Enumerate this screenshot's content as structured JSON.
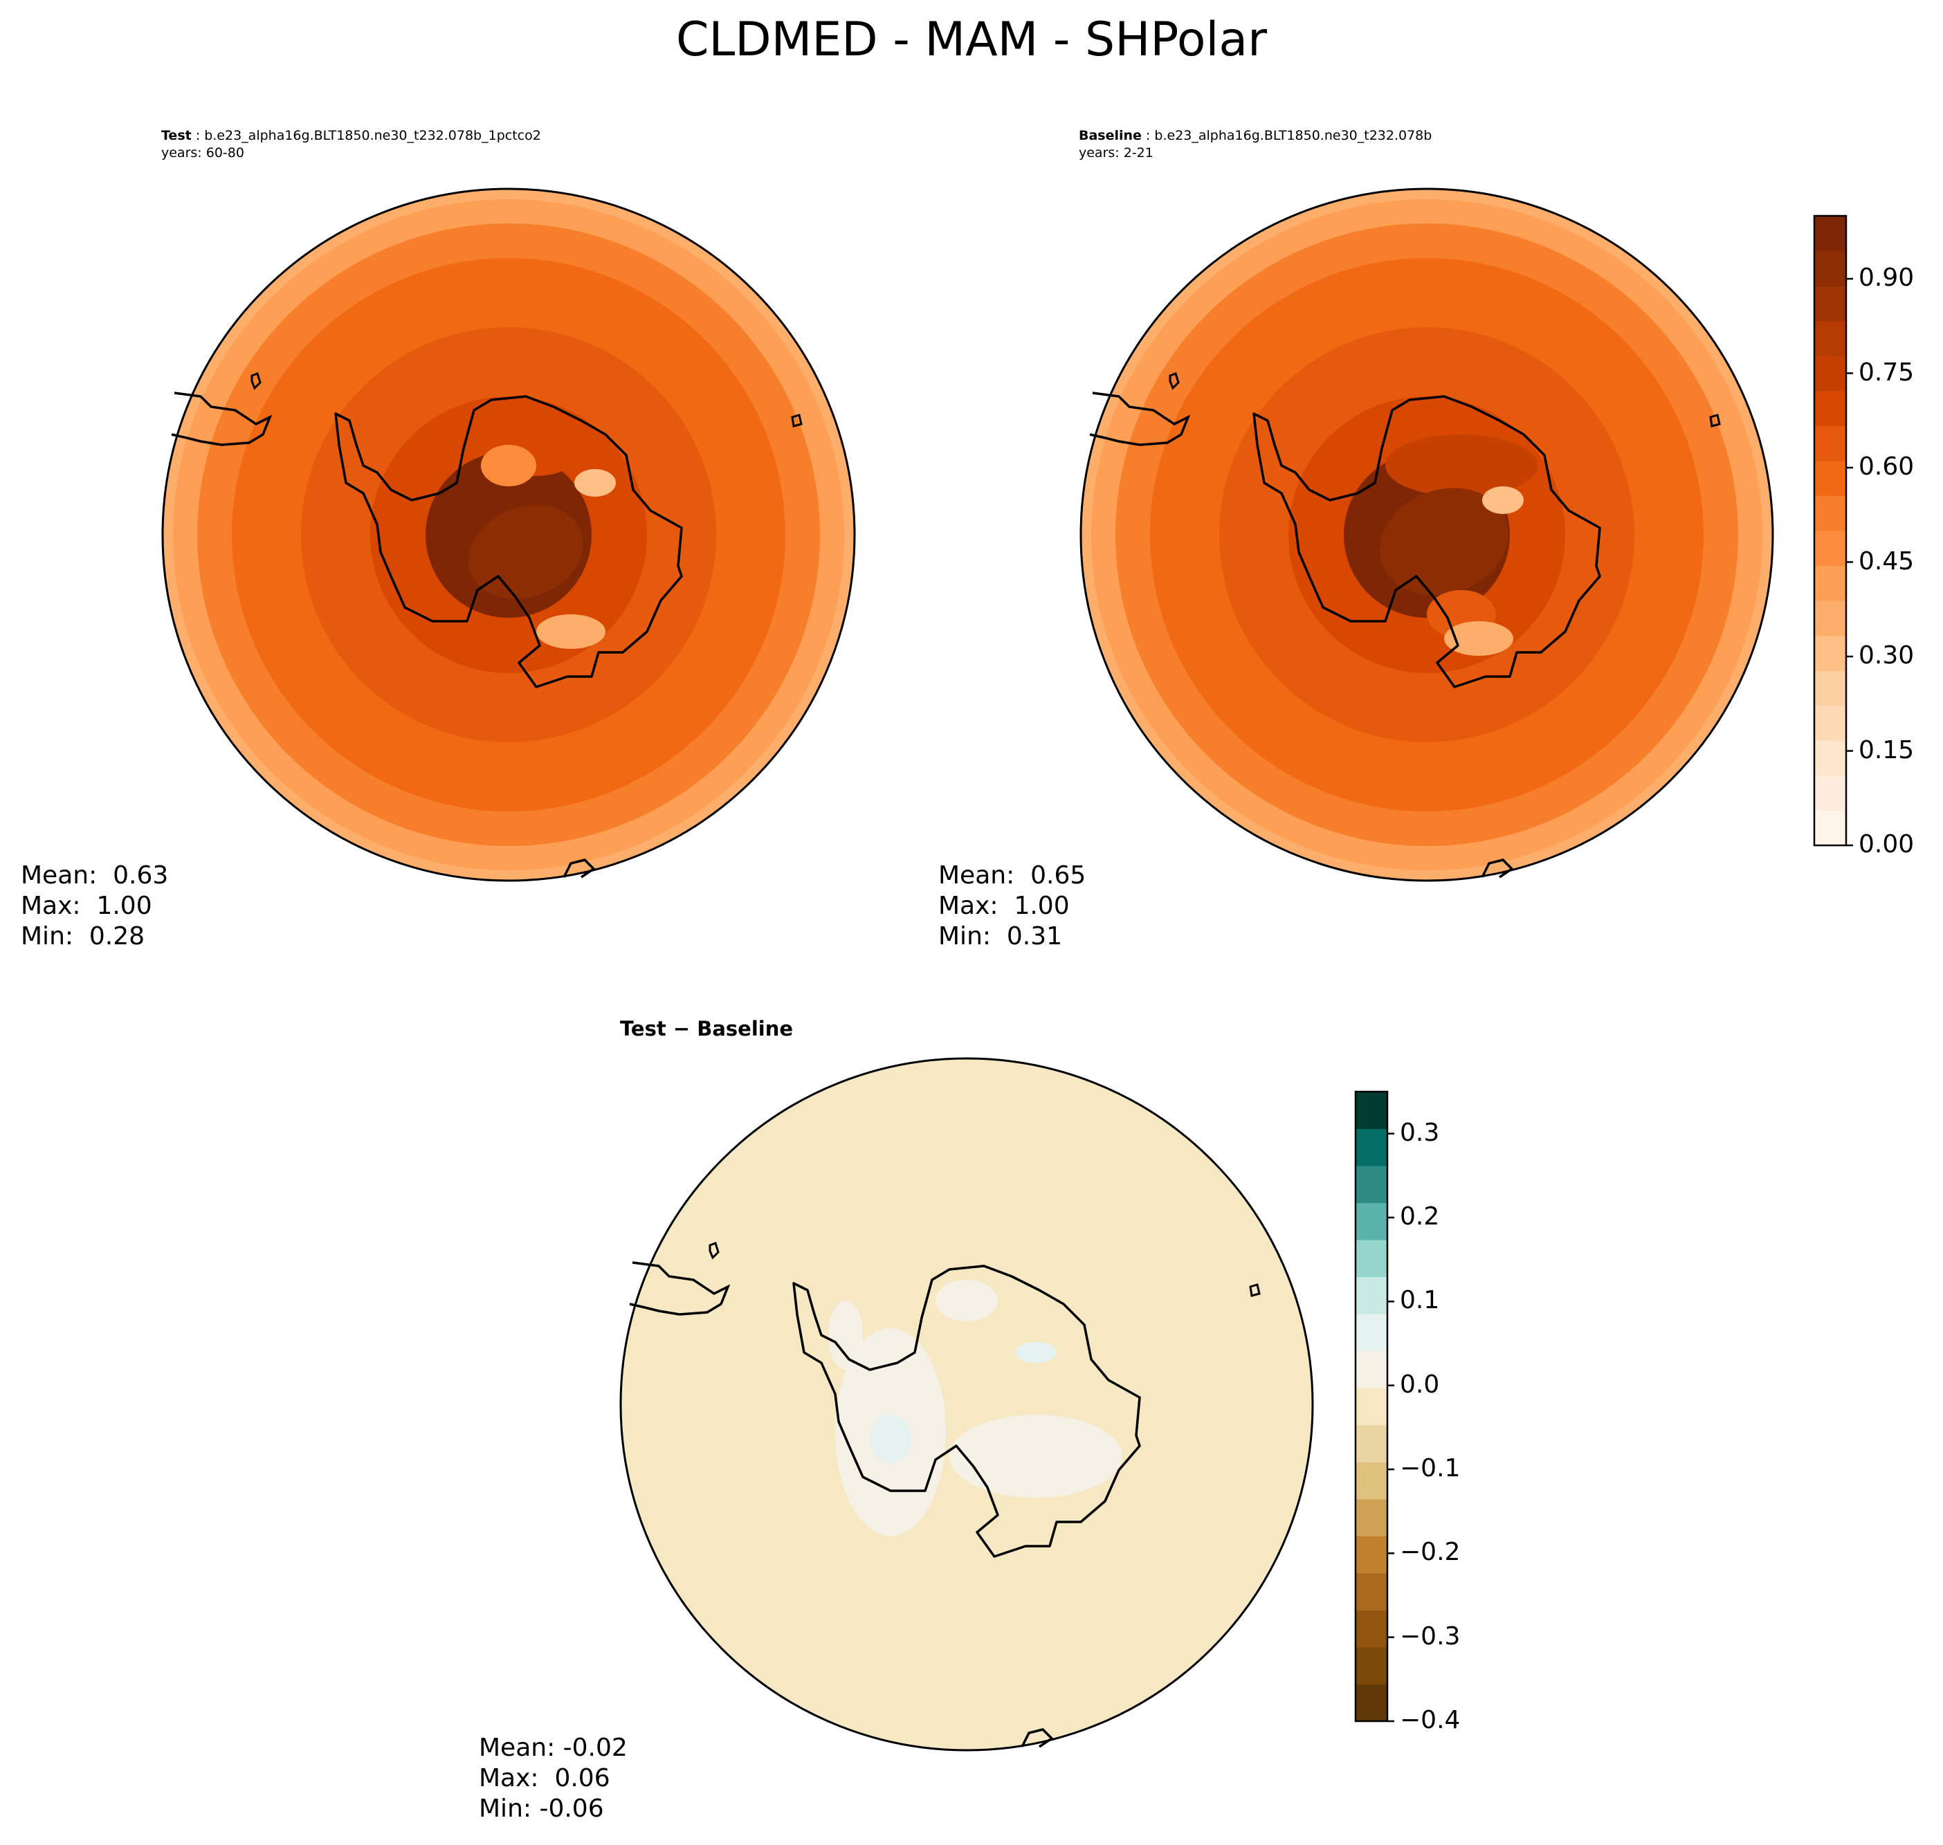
{
  "figure": {
    "title": "CLDMED - MAM - SHPolar"
  },
  "chart_data": [
    {
      "type": "heatmap",
      "panel": "test",
      "label": "Test",
      "case": "b.e23_alpha16g.BLT1850.ne30_t232.078b_1pctco2",
      "years": "years: 60-80",
      "projection": "south polar stereographic",
      "colormap": "Oranges",
      "levels": [
        0,
        0.05,
        0.1,
        0.15,
        0.2,
        0.25,
        0.3,
        0.35,
        0.4,
        0.45,
        0.5,
        0.55,
        0.6,
        0.65,
        0.7,
        0.75,
        0.8,
        0.85,
        0.9,
        0.95,
        1.0
      ],
      "stats": {
        "mean": "Mean:  0.63",
        "max": "Max:  1.00",
        "min": "Min:  0.28"
      },
      "rings": [
        {
          "r": 1.0,
          "value": 0.35
        },
        {
          "r": 0.97,
          "value": 0.42
        },
        {
          "r": 0.9,
          "value": 0.5
        },
        {
          "r": 0.8,
          "value": 0.57
        },
        {
          "r": 0.6,
          "value": 0.62
        },
        {
          "r": 0.4,
          "value": 0.68
        },
        {
          "r": 0.24,
          "value": 0.97
        }
      ]
    },
    {
      "type": "heatmap",
      "panel": "baseline",
      "label": "Baseline",
      "case": "b.e23_alpha16g.BLT1850.ne30_t232.078b",
      "years": "years: 2-21",
      "projection": "south polar stereographic",
      "colormap": "Oranges",
      "levels": [
        0,
        0.05,
        0.1,
        0.15,
        0.2,
        0.25,
        0.3,
        0.35,
        0.4,
        0.45,
        0.5,
        0.55,
        0.6,
        0.65,
        0.7,
        0.75,
        0.8,
        0.85,
        0.9,
        0.95,
        1.0
      ],
      "stats": {
        "mean": "Mean:  0.65",
        "max": "Max:  1.00",
        "min": "Min:  0.31"
      },
      "rings": [
        {
          "r": 1.0,
          "value": 0.36
        },
        {
          "r": 0.97,
          "value": 0.44
        },
        {
          "r": 0.9,
          "value": 0.52
        },
        {
          "r": 0.8,
          "value": 0.58
        },
        {
          "r": 0.6,
          "value": 0.64
        },
        {
          "r": 0.4,
          "value": 0.7
        },
        {
          "r": 0.24,
          "value": 0.97
        }
      ]
    },
    {
      "type": "heatmap",
      "panel": "difference",
      "label": "Test − Baseline",
      "projection": "south polar stereographic",
      "colormap": "BrBG",
      "levels": [
        -0.4,
        -0.35,
        -0.3,
        -0.25,
        -0.2,
        -0.15,
        -0.1,
        -0.05,
        0.0,
        0.05,
        0.1,
        0.15,
        0.2,
        0.25,
        0.3,
        0.35
      ],
      "stats": {
        "mean": "Mean: -0.02",
        "max": "Max:  0.06",
        "min": "Min: -0.06"
      },
      "rings": [
        {
          "r": 1.0,
          "value": -0.02
        }
      ]
    }
  ],
  "colorbars": {
    "abs": {
      "ticks": [
        "0.00",
        "0.15",
        "0.30",
        "0.45",
        "0.60",
        "0.75",
        "0.90"
      ],
      "tick_values": [
        0,
        0.15,
        0.3,
        0.45,
        0.6,
        0.75,
        0.9
      ],
      "range": [
        0,
        1.0
      ],
      "colors": [
        "#fff5eb",
        "#feeddc",
        "#fee6ce",
        "#fdd9b5",
        "#fdd0a2",
        "#fdbf86",
        "#fdae6b",
        "#fd9f54",
        "#fd8d3c",
        "#f77e2b",
        "#f16913",
        "#e55a0c",
        "#d94801",
        "#c64002",
        "#b63b02",
        "#9e3303",
        "#8c2d04",
        "#7f2704"
      ]
    },
    "diff": {
      "ticks": [
        "−0.4",
        "−0.3",
        "−0.2",
        "−0.1",
        "0.0",
        "0.1",
        "0.2",
        "0.3"
      ],
      "tick_values": [
        -0.4,
        -0.3,
        -0.2,
        -0.1,
        0.0,
        0.1,
        0.2,
        0.3
      ],
      "range": [
        -0.4,
        0.35
      ],
      "colors": [
        "#613908",
        "#7b4a0b",
        "#92550f",
        "#a96a1e",
        "#bf812d",
        "#d0a256",
        "#dfc27d",
        "#ead5a3",
        "#f6e8c3",
        "#f5f1e6",
        "#e5f2f0",
        "#c7eae5",
        "#95d6cc",
        "#5ab4ac",
        "#2c8b82",
        "#046e64",
        "#003c30"
      ]
    }
  }
}
